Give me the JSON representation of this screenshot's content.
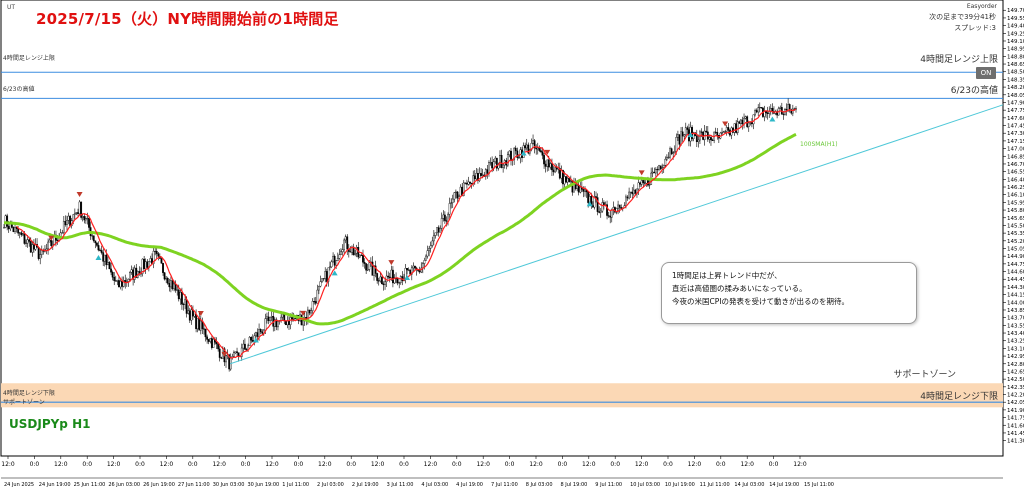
{
  "title": "2025/7/15（火）NY時間開始前の1時間足",
  "symbol_label": "USDJPYp H1",
  "top_left_label": "UT",
  "top_right": {
    "plugin": "Easyorder",
    "countdown": "次の足まで39分41秒",
    "spread": "スプレッド:3"
  },
  "on_button": "ON",
  "levels": [
    {
      "name": "4h-range-upper",
      "label_left": "4時間足レンジ上限",
      "label_right": "4時間足レンジ上限",
      "price": 148.49,
      "color": "#3d8de0"
    },
    {
      "name": "june23-high",
      "label_left": "6/23の高値",
      "label_right": "6/23の高値",
      "price": 147.98,
      "color": "#3d8de0"
    },
    {
      "name": "4h-range-lower",
      "label_left": "4時間足レンジ下限",
      "label_right": "4時間足レンジ下限",
      "price": 142.05,
      "color": "#3d8de0"
    }
  ],
  "support_zone": {
    "label_left": "サポートゾーン",
    "label_right": "サポートゾーン",
    "price_top": 142.42,
    "price_bottom": 141.95,
    "color": "#fbd8b5"
  },
  "ma_label": "100SMA(H1)",
  "callout": {
    "lines": [
      "1時間足は上昇トレンド中だが、",
      "直近は高値圏の揉みあいになっている。",
      "今夜の米国CPIの発表を受けて動きが出るのを期待。"
    ]
  },
  "chart_data": {
    "type": "candlestick",
    "ylim": [
      141.0,
      149.9
    ],
    "yticks": [
      141.3,
      141.45,
      141.6,
      141.75,
      141.9,
      142.05,
      142.2,
      142.35,
      142.5,
      142.65,
      142.8,
      142.95,
      143.1,
      143.25,
      143.4,
      143.55,
      143.7,
      143.85,
      144.0,
      144.15,
      144.3,
      144.45,
      144.6,
      144.75,
      144.9,
      145.05,
      145.2,
      145.35,
      145.5,
      145.65,
      145.8,
      145.95,
      146.1,
      146.25,
      146.4,
      146.55,
      146.7,
      146.85,
      147.0,
      147.15,
      147.3,
      147.45,
      147.6,
      147.75,
      147.9,
      148.05,
      148.2,
      148.35,
      148.5,
      148.65,
      148.8,
      148.95,
      149.1,
      149.25,
      149.4,
      149.55,
      149.7
    ],
    "x_axis_times": [
      "12:0",
      "0:0",
      "12:0",
      "0:0",
      "12:0",
      "0:0",
      "12:0",
      "0:0",
      "12:0",
      "0:0",
      "12:0",
      "0:0",
      "12:0",
      "0:0",
      "12:0",
      "0:0",
      "12:0",
      "0:0",
      "12:0",
      "0:0",
      "12:0",
      "0:0",
      "12:0",
      "0:0",
      "12:0",
      "0:0",
      "12:0",
      "0:0",
      "12:0",
      "0:0",
      "12:0"
    ],
    "x_axis_dates": [
      "24 Jun 2025",
      "24 Jun 19:00",
      "25 Jun 11:00",
      "26 Jun 03:00",
      "26 Jun 19:00",
      "27 Jun 11:00",
      "30 Jun 03:00",
      "30 Jun 19:00",
      "1 Jul 11:00",
      "2 Jul 03:00",
      "2 Jul 19:00",
      "3 Jul 11:00",
      "4 Jul 03:00",
      "4 Jul 19:00",
      "7 Jul 11:00",
      "8 Jul 03:00",
      "8 Jul 19:00",
      "9 Jul 11:00",
      "10 Jul 03:00",
      "10 Jul 19:00",
      "11 Jul 11:00",
      "14 Jul 03:00",
      "14 Jul 19:00",
      "15 Jul 11:00"
    ],
    "key_points": [
      {
        "time": "24 Jun 2025",
        "price": 145.6
      },
      {
        "time": "25 Jun 03:00",
        "price": 144.9
      },
      {
        "time": "25 Jun 19:00",
        "price": 145.85
      },
      {
        "time": "26 Jun 11:00",
        "price": 144.3
      },
      {
        "time": "27 Jun 11:00",
        "price": 144.9
      },
      {
        "time": "30 Jun 19:00",
        "price": 143.7
      },
      {
        "time": "1 Jul 03:00",
        "price": 142.8
      },
      {
        "time": "1 Jul 19:00",
        "price": 143.6
      },
      {
        "time": "2 Jul 19:00",
        "price": 143.7
      },
      {
        "time": "3 Jul 03:00",
        "price": 145.2
      },
      {
        "time": "3 Jul 19:00",
        "price": 144.45
      },
      {
        "time": "4 Jul 19:00",
        "price": 144.6
      },
      {
        "time": "7 Jul 11:00",
        "price": 146.1
      },
      {
        "time": "8 Jul 03:00",
        "price": 146.7
      },
      {
        "time": "8 Jul 19:00",
        "price": 147.05
      },
      {
        "time": "9 Jul 11:00",
        "price": 146.3
      },
      {
        "time": "10 Jul 03:00",
        "price": 145.75
      },
      {
        "time": "10 Jul 19:00",
        "price": 146.3
      },
      {
        "time": "11 Jul 11:00",
        "price": 147.3
      },
      {
        "time": "14 Jul 03:00",
        "price": 147.2
      },
      {
        "time": "14 Jul 19:00",
        "price": 147.7
      },
      {
        "time": "15 Jul 11:00",
        "price": 147.75
      }
    ],
    "trendline": [
      {
        "time": "1 Jul 03:00",
        "price": 142.8
      },
      {
        "time": "15 Jul 11:00",
        "price": 146.5
      }
    ]
  }
}
